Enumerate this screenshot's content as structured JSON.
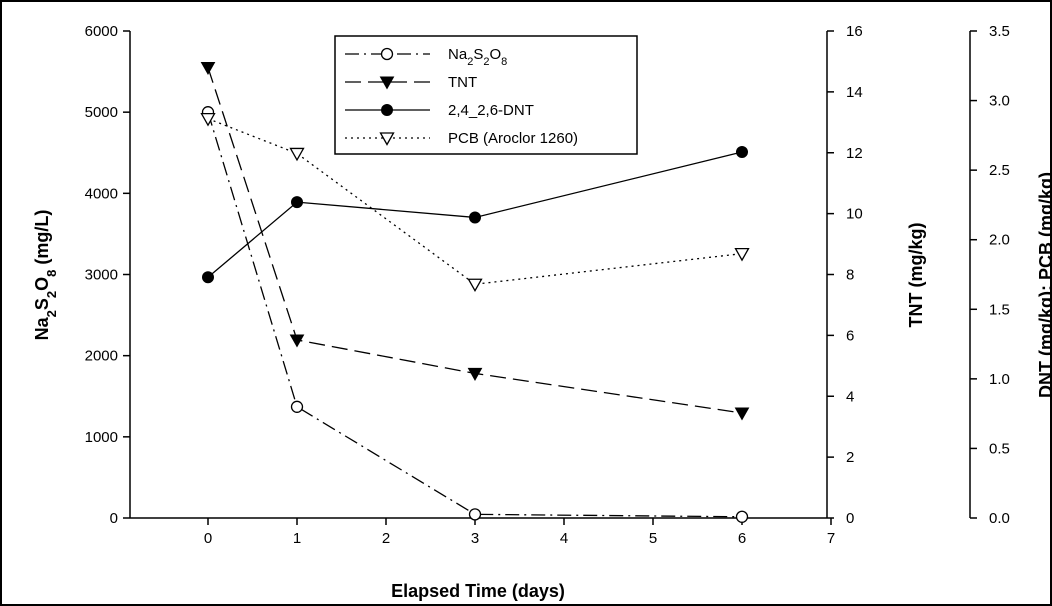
{
  "chart_data": {
    "type": "line",
    "xlabel": "Elapsed Time (days)",
    "x_ticks": [
      0,
      1,
      2,
      3,
      4,
      5,
      6,
      7
    ],
    "xlim": [
      -1,
      7
    ],
    "axes": {
      "left": {
        "label_parts": [
          {
            "t": "Na",
            "sub": false
          },
          {
            "t": "2",
            "sub": true
          },
          {
            "t": "S",
            "sub": false
          },
          {
            "t": "2",
            "sub": true
          },
          {
            "t": "O",
            "sub": false
          },
          {
            "t": "8",
            "sub": true
          },
          {
            "t": " (mg/L)",
            "sub": false
          }
        ],
        "ylim": [
          0,
          6000
        ],
        "ticks": [
          0,
          1000,
          2000,
          3000,
          4000,
          5000,
          6000
        ],
        "tick_labels": [
          "0",
          "1000",
          "2000",
          "3000",
          "4000",
          "5000",
          "6000"
        ]
      },
      "right1": {
        "label": "TNT (mg/kg)",
        "ylim": [
          0,
          16
        ],
        "ticks": [
          0,
          2,
          4,
          6,
          8,
          10,
          12,
          14,
          16
        ],
        "tick_labels": [
          "0",
          "2",
          "4",
          "6",
          "8",
          "10",
          "12",
          "14",
          "16"
        ]
      },
      "right2": {
        "label": "DNT (mg/kg); PCB (mg/kg)",
        "ylim": [
          0,
          3.5
        ],
        "ticks": [
          0,
          0.5,
          1.0,
          1.5,
          2.0,
          2.5,
          3.0,
          3.5
        ],
        "tick_labels": [
          "0.0",
          "0.5",
          "1.0",
          "1.5",
          "2.0",
          "2.5",
          "3.0",
          "3.5"
        ]
      }
    },
    "series": [
      {
        "legend_parts": [
          {
            "t": "Na",
            "sub": false
          },
          {
            "t": "2",
            "sub": true
          },
          {
            "t": "S",
            "sub": false
          },
          {
            "t": "2",
            "sub": true
          },
          {
            "t": "O",
            "sub": false
          },
          {
            "t": "8",
            "sub": true
          }
        ],
        "axis": "left",
        "marker": "open-circle",
        "line": "dash-dot",
        "x": [
          0,
          1,
          3,
          6
        ],
        "y": [
          5000,
          1370,
          45,
          15
        ]
      },
      {
        "name": "TNT",
        "axis": "right1",
        "marker": "filled-triangle-down",
        "line": "dashed",
        "x": [
          0,
          1,
          3,
          6
        ],
        "y": [
          14.8,
          5.85,
          4.75,
          3.45
        ]
      },
      {
        "name": "2,4_2,6-DNT",
        "axis": "right2",
        "marker": "filled-circle",
        "line": "solid",
        "x": [
          0,
          1,
          3,
          6
        ],
        "y": [
          1.73,
          2.27,
          2.16,
          2.63
        ]
      },
      {
        "name": "PCB (Aroclor 1260)",
        "axis": "right2",
        "marker": "open-triangle-down",
        "line": "dotted",
        "x": [
          0,
          1,
          3,
          6
        ],
        "y": [
          2.87,
          2.62,
          1.68,
          1.9
        ]
      }
    ],
    "legend_position": "top-center",
    "grid": false
  }
}
